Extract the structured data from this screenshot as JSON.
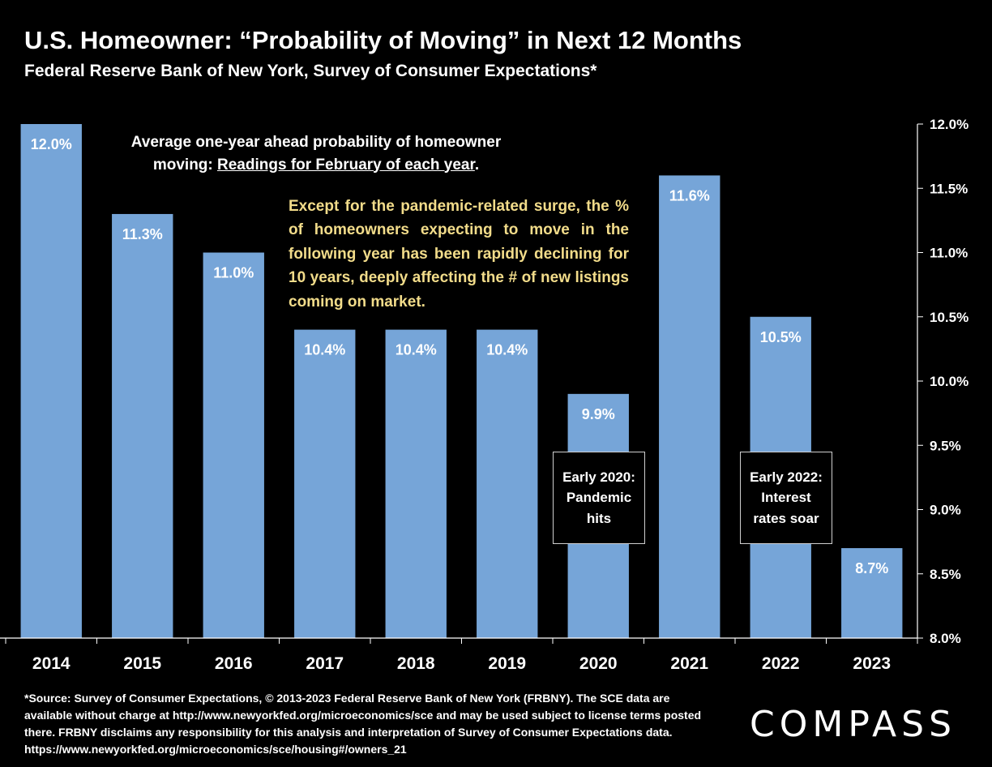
{
  "title": "U.S. Homeowner: “Probability of Moving” in Next 12 Months",
  "subtitle": "Federal Reserve Bank of New York, Survey of Consumer Expectations*",
  "annotations": {
    "note_line1": "Average one-year ahead probability of homeowner",
    "note_line2_prefix": "moving:  ",
    "note_line2_underlined": "Readings for February of each year",
    "note_line2_suffix": ".",
    "highlight": "Except for the pandemic-related surge, the % of homeowners expecting to move in the following year has been rapidly declining for 10 years, deeply affecting the # of new listings coming on market.",
    "callout_2020": "Early 2020: Pandemic hits",
    "callout_2022": "Early 2022: Interest rates soar"
  },
  "source": "*Source:  Survey of Consumer Expectations, © 2013-2023 Federal Reserve Bank of New York (FRBNY).  The SCE data are available without charge at http://www.newyorkfed.org/microeconomics/sce and may be used subject to license terms posted there. FRBNY disclaims any responsibility for this analysis and interpretation of Survey of Consumer Expectations data. https://www.newyorkfed.org/microeconomics/sce/housing#/owners_21",
  "logo": "COMPASS",
  "colors": {
    "bar": "#76a5d8",
    "background": "#000000",
    "highlight_text": "#f2dc8a",
    "grid": "#ffffff"
  },
  "chart_data": {
    "type": "bar",
    "categories": [
      "2014",
      "2015",
      "2016",
      "2017",
      "2018",
      "2019",
      "2020",
      "2021",
      "2022",
      "2023"
    ],
    "values": [
      12.0,
      11.3,
      11.0,
      10.4,
      10.4,
      10.4,
      9.9,
      11.6,
      10.5,
      8.7
    ],
    "data_labels": [
      "12.0%",
      "11.3%",
      "11.0%",
      "10.4%",
      "10.4%",
      "10.4%",
      "9.9%",
      "11.6%",
      "10.5%",
      "8.7%"
    ],
    "ylim": [
      8.0,
      12.0
    ],
    "yticks": [
      8.0,
      8.5,
      9.0,
      9.5,
      10.0,
      10.5,
      11.0,
      11.5,
      12.0
    ],
    "ytick_labels": [
      "8.0%",
      "8.5%",
      "9.0%",
      "9.5%",
      "10.0%",
      "10.5%",
      "11.0%",
      "11.5%",
      "12.0%"
    ],
    "y_axis_side": "right",
    "grid": false,
    "legend": "none",
    "xlabel": "",
    "ylabel": ""
  }
}
